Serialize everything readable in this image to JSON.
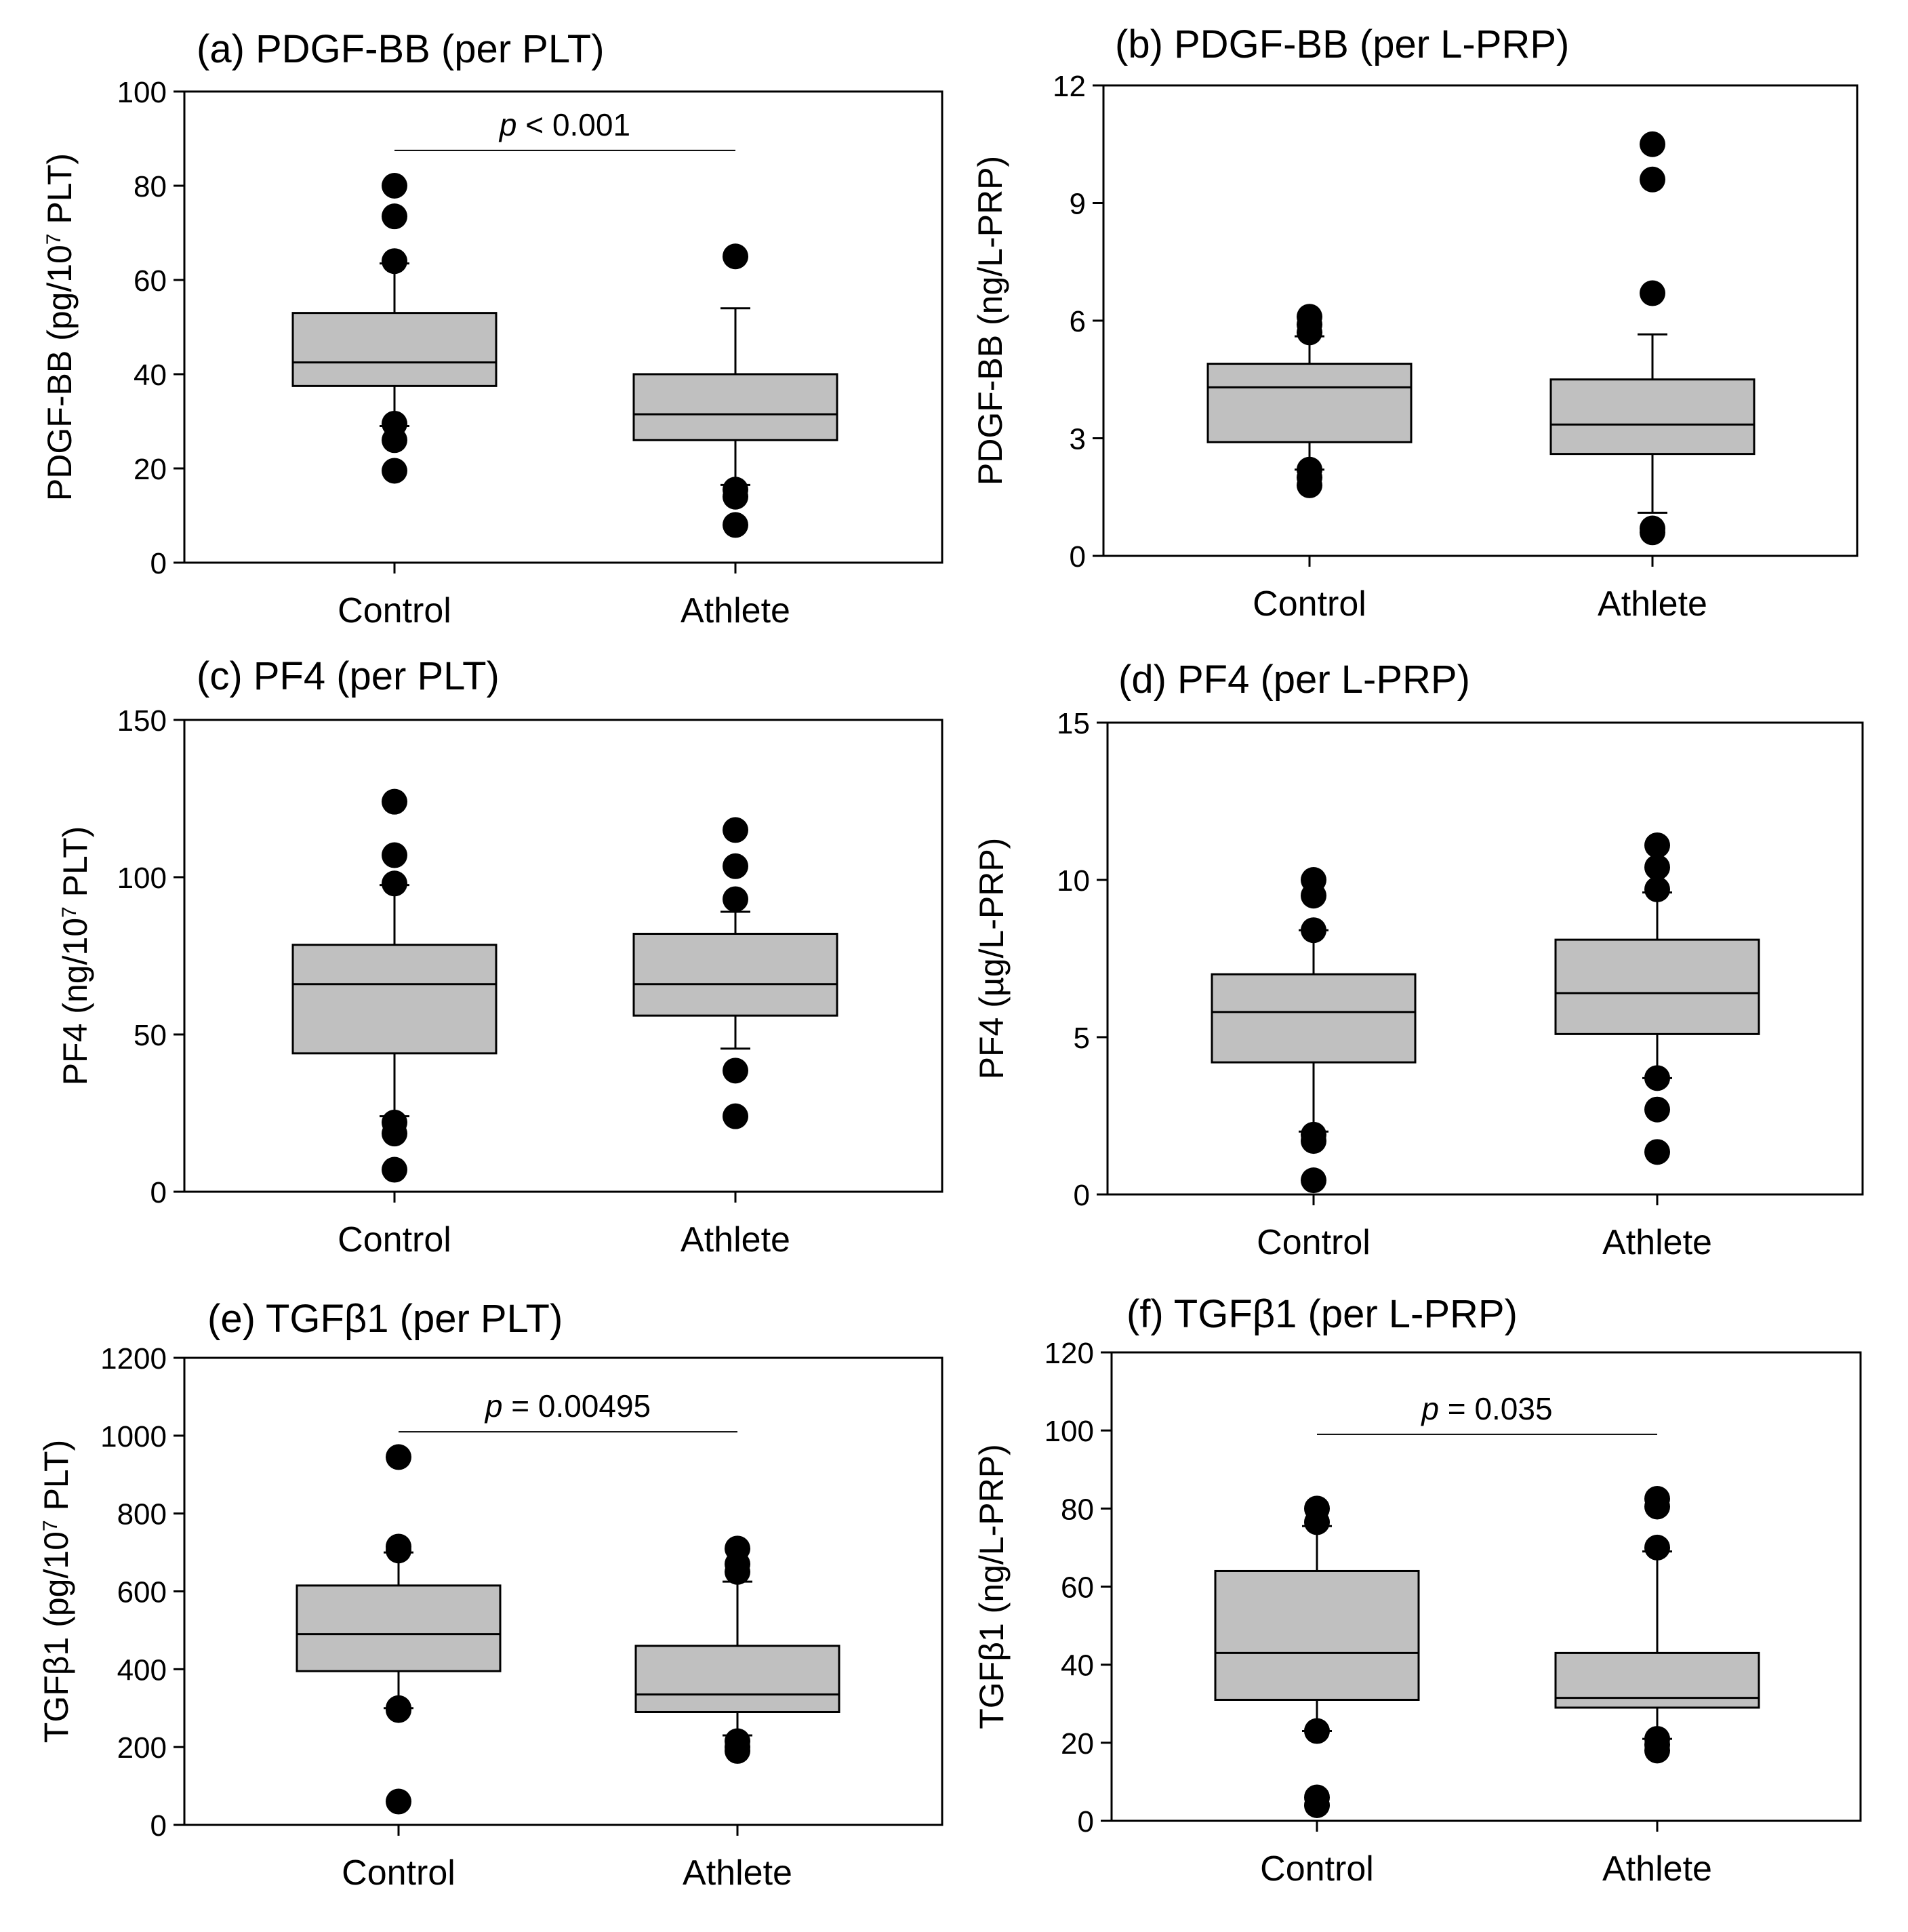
{
  "chart_data": [
    {
      "id": "a",
      "type": "box",
      "title": "(a) PDGF-BB (per PLT)",
      "ylabel_parts": [
        "PDGF-BB (pg/10",
        "7",
        " PLT)"
      ],
      "ylim": [
        0,
        100
      ],
      "yticks": [
        0,
        20,
        40,
        60,
        80,
        100
      ],
      "categories": [
        "Control",
        "Athlete"
      ],
      "boxes": [
        {
          "q1": 37.5,
          "median": 42.5,
          "q3": 53,
          "whisker_low": 29,
          "whisker_high": 63.5,
          "outliers": [
            80,
            73.5,
            64,
            29.5,
            26,
            19.5
          ]
        },
        {
          "q1": 26,
          "median": 31.5,
          "q3": 40,
          "whisker_low": 16.5,
          "whisker_high": 54,
          "outliers": [
            65,
            15.5,
            14,
            8
          ]
        }
      ],
      "annotation": {
        "italic": "p",
        "text": " < 0.001",
        "y": 87.5
      }
    },
    {
      "id": "b",
      "type": "box",
      "title": "(b) PDGF-BB (per L-PRP)",
      "ylabel_parts": [
        "PDGF-BB (ng/L-PRP)"
      ],
      "ylim": [
        0,
        12
      ],
      "yticks": [
        0,
        3,
        6,
        9,
        12
      ],
      "categories": [
        "Control",
        "Athlete"
      ],
      "boxes": [
        {
          "q1": 2.9,
          "median": 4.3,
          "q3": 4.9,
          "whisker_low": 2.2,
          "whisker_high": 5.6,
          "outliers": [
            6.1,
            5.9,
            5.7,
            2.2,
            2.0,
            1.8
          ]
        },
        {
          "q1": 2.6,
          "median": 3.35,
          "q3": 4.5,
          "whisker_low": 1.1,
          "whisker_high": 5.65,
          "outliers": [
            10.5,
            9.6,
            6.7,
            0.7,
            0.6
          ]
        }
      ],
      "annotation": null
    },
    {
      "id": "c",
      "type": "box",
      "title": "(c) PF4 (per PLT)",
      "ylabel_parts": [
        "PF4 (ng/10",
        "7",
        " PLT)"
      ],
      "ylim": [
        0,
        150
      ],
      "yticks": [
        0,
        50,
        100,
        150
      ],
      "categories": [
        "Control",
        "Athlete"
      ],
      "boxes": [
        {
          "q1": 44,
          "median": 66,
          "q3": 78.5,
          "whisker_low": 24,
          "whisker_high": 97.5,
          "outliers": [
            124,
            107,
            98,
            22,
            18.5,
            7
          ]
        },
        {
          "q1": 56,
          "median": 66,
          "q3": 82,
          "whisker_low": 45.5,
          "whisker_high": 89,
          "outliers": [
            115,
            103.5,
            93,
            38.5,
            24
          ]
        }
      ],
      "annotation": null
    },
    {
      "id": "d",
      "type": "box",
      "title": "(d) PF4 (per L-PRP)",
      "ylabel_parts": [
        "PF4 (µg/L-PRP)"
      ],
      "ylim": [
        0,
        15
      ],
      "yticks": [
        0,
        5,
        10,
        15
      ],
      "categories": [
        "Control",
        "Athlete"
      ],
      "boxes": [
        {
          "q1": 4.2,
          "median": 5.8,
          "q3": 7.0,
          "whisker_low": 2.0,
          "whisker_high": 8.4,
          "outliers": [
            10.0,
            9.5,
            8.4,
            1.9,
            1.7,
            0.45
          ]
        },
        {
          "q1": 5.1,
          "median": 6.4,
          "q3": 8.1,
          "whisker_low": 3.7,
          "whisker_high": 9.6,
          "outliers": [
            11.1,
            10.4,
            9.7,
            3.7,
            2.7,
            1.35
          ]
        }
      ],
      "annotation": null
    },
    {
      "id": "e",
      "type": "box",
      "title": "(e) TGFβ1 (per PLT)",
      "ylabel_parts": [
        "TGFβ1 (pg/10",
        "7",
        " PLT)"
      ],
      "ylim": [
        0,
        1200
      ],
      "yticks": [
        0,
        200,
        400,
        600,
        800,
        1000,
        1200
      ],
      "categories": [
        "Control",
        "Athlete"
      ],
      "boxes": [
        {
          "q1": 395,
          "median": 490,
          "q3": 615,
          "whisker_low": 300,
          "whisker_high": 700,
          "outliers": [
            945,
            715,
            705,
            300,
            295,
            60
          ]
        },
        {
          "q1": 290,
          "median": 335,
          "q3": 460,
          "whisker_low": 230,
          "whisker_high": 625,
          "outliers": [
            710,
            670,
            650,
            215,
            200,
            190
          ]
        }
      ],
      "annotation": {
        "italic": "p",
        "text": " = 0.00495",
        "y": 1010
      }
    },
    {
      "id": "f",
      "type": "box",
      "title": "(f) TGFβ1 (per L-PRP)",
      "ylabel_parts": [
        "TGFβ1 (ng/L-PRP)"
      ],
      "ylim": [
        0,
        120
      ],
      "yticks": [
        0,
        20,
        40,
        60,
        80,
        100,
        120
      ],
      "categories": [
        "Control",
        "Athlete"
      ],
      "boxes": [
        {
          "q1": 31,
          "median": 43,
          "q3": 64,
          "whisker_low": 23,
          "whisker_high": 75.5,
          "outliers": [
            80,
            76.5,
            23,
            6,
            4
          ]
        },
        {
          "q1": 29,
          "median": 31.5,
          "q3": 43,
          "whisker_low": 21,
          "whisker_high": 69,
          "outliers": [
            82.5,
            80.5,
            70,
            21,
            19.5,
            18
          ]
        }
      ],
      "annotation": {
        "italic": "p",
        "text": " = 0.035",
        "y": 99
      }
    }
  ]
}
